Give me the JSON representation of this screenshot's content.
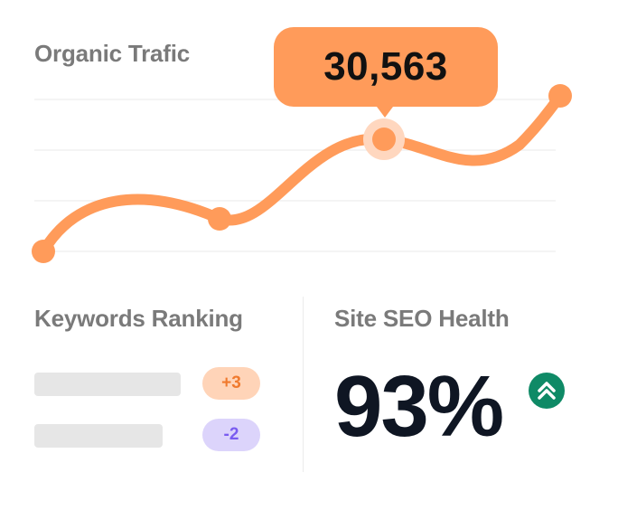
{
  "traffic": {
    "title": "Organic Trafic",
    "tooltip_value": "30,563",
    "line_color": "#ff9b5a",
    "chart_data": {
      "type": "line",
      "series": [
        {
          "values": [
            11000,
            21000,
            30563,
            36000
          ]
        }
      ],
      "highlight_index": 2
    }
  },
  "keywords": {
    "title": "Keywords Ranking",
    "items": [
      {
        "change": "+3",
        "trend": "up"
      },
      {
        "change": "-2",
        "trend": "down"
      }
    ]
  },
  "seo": {
    "title": "Site SEO Health",
    "value": "93%",
    "trend_icon": "double-chevron-up-icon",
    "icon_color": "#0f8a66"
  }
}
